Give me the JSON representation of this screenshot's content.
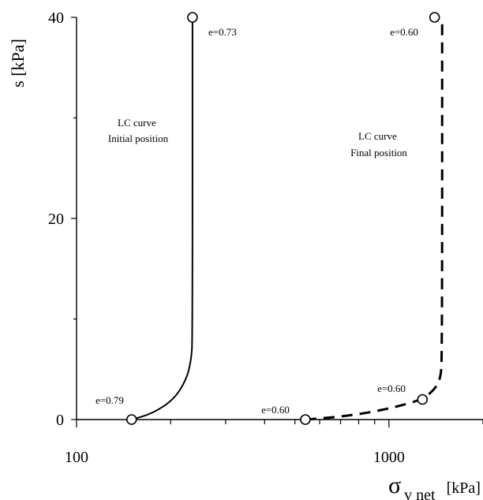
{
  "chart_data": {
    "type": "line",
    "x_scale": "log",
    "xlim": [
      100,
      2000
    ],
    "ylim": [
      0,
      40
    ],
    "x_ticks": [
      100,
      1000
    ],
    "y_ticks": [
      0,
      20,
      40
    ],
    "xlabel": {
      "symbol": "σ",
      "subscript": "v net",
      "unit": "[kPa]"
    },
    "ylabel": "s [kPa]",
    "grid": false,
    "series": [
      {
        "style": "solid",
        "x": [
          150,
          175,
          205,
          225,
          233,
          235,
          235
        ],
        "y": [
          0,
          0.6,
          2.0,
          4.0,
          6.0,
          8.0,
          40
        ],
        "markers_x": [
          150,
          235
        ],
        "markers_y": [
          0,
          40
        ]
      },
      {
        "style": "dashed",
        "x": [
          540,
          680,
          850,
          1050,
          1280,
          1400,
          1460,
          1480,
          1480
        ],
        "y": [
          0,
          0.25,
          0.65,
          1.25,
          2.0,
          3.0,
          4.0,
          6.0,
          40
        ],
        "markers_x": [
          540,
          1280,
          1400
        ],
        "markers_y": [
          0,
          2.0,
          40
        ]
      }
    ],
    "point_labels": [
      {
        "text": "e=0.79",
        "x": 150,
        "y": 0
      },
      {
        "text": "e=0.73",
        "x": 235,
        "y": 40
      },
      {
        "text": "e=0.60",
        "x": 540,
        "y": 0
      },
      {
        "text": "e=0.60",
        "x": 1280,
        "y": 2.0
      },
      {
        "text": "e=0.60",
        "x": 1400,
        "y": 40
      }
    ],
    "annotations": [
      {
        "lines": [
          "LC curve",
          "Initial position"
        ]
      },
      {
        "lines": [
          "LC curve",
          "Final position"
        ]
      }
    ]
  }
}
